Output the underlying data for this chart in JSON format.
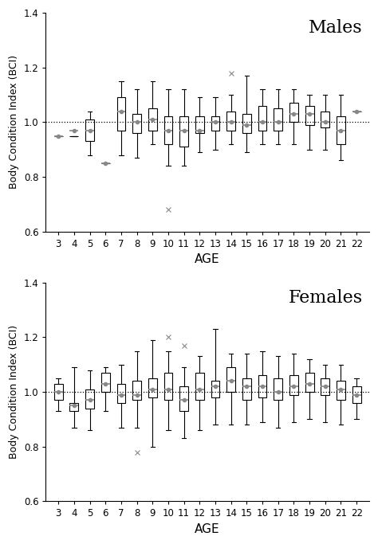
{
  "ages": [
    3,
    4,
    5,
    6,
    7,
    8,
    9,
    10,
    11,
    12,
    13,
    14,
    15,
    16,
    17,
    18,
    19,
    20,
    21,
    22
  ],
  "males": {
    "medians": [
      0.95,
      0.97,
      0.97,
      0.85,
      1.04,
      1.0,
      1.01,
      0.97,
      0.97,
      0.97,
      1.0,
      1.0,
      0.99,
      1.0,
      1.0,
      1.03,
      1.03,
      1.0,
      0.97,
      1.04
    ],
    "q1": [
      0.95,
      0.95,
      0.93,
      0.85,
      0.97,
      0.96,
      0.97,
      0.92,
      0.91,
      0.96,
      0.97,
      0.97,
      0.96,
      0.97,
      0.97,
      1.0,
      0.99,
      0.98,
      0.92,
      1.04
    ],
    "q3": [
      0.95,
      0.95,
      1.01,
      0.85,
      1.09,
      1.03,
      1.05,
      1.02,
      1.02,
      1.02,
      1.02,
      1.04,
      1.03,
      1.06,
      1.05,
      1.07,
      1.06,
      1.04,
      1.02,
      1.04
    ],
    "whislo": [
      0.95,
      0.95,
      0.88,
      0.85,
      0.88,
      0.87,
      0.92,
      0.84,
      0.84,
      0.89,
      0.9,
      0.92,
      0.89,
      0.92,
      0.92,
      0.92,
      0.9,
      0.9,
      0.86,
      1.04
    ],
    "whishi": [
      0.95,
      0.95,
      1.04,
      0.85,
      1.15,
      1.12,
      1.15,
      1.12,
      1.12,
      1.09,
      1.09,
      1.1,
      1.17,
      1.12,
      1.12,
      1.12,
      1.1,
      1.1,
      1.1,
      1.04
    ],
    "fliers": [
      [
        null,
        null
      ],
      [
        null,
        null
      ],
      [
        null,
        null
      ],
      [
        null,
        null
      ],
      [
        null,
        null
      ],
      [
        null,
        null
      ],
      [
        null,
        null
      ],
      [
        11,
        0.68
      ],
      [
        null,
        null
      ],
      [
        null,
        null
      ],
      [
        null,
        null
      ],
      [
        15,
        1.18
      ],
      [
        null,
        null
      ],
      [
        null,
        null
      ],
      [
        null,
        null
      ],
      [
        null,
        null
      ],
      [
        null,
        null
      ],
      [
        null,
        null
      ],
      [
        null,
        null
      ],
      [
        null,
        null
      ]
    ],
    "single_obs": [
      true,
      false,
      false,
      true,
      false,
      false,
      false,
      false,
      false,
      false,
      false,
      false,
      false,
      false,
      false,
      false,
      false,
      false,
      false,
      false
    ]
  },
  "females": {
    "medians": [
      1.0,
      0.95,
      0.97,
      1.03,
      0.99,
      0.99,
      1.01,
      1.01,
      0.97,
      1.01,
      1.02,
      1.04,
      1.02,
      1.02,
      1.0,
      1.02,
      1.03,
      1.02,
      1.01,
      0.99
    ],
    "q1": [
      0.97,
      0.93,
      0.94,
      1.0,
      0.96,
      0.97,
      0.98,
      0.97,
      0.93,
      0.97,
      0.98,
      1.0,
      0.97,
      0.98,
      0.97,
      0.99,
      1.0,
      0.99,
      0.97,
      0.96
    ],
    "q3": [
      1.03,
      0.96,
      1.01,
      1.07,
      1.03,
      1.04,
      1.05,
      1.07,
      1.02,
      1.07,
      1.04,
      1.09,
      1.05,
      1.06,
      1.05,
      1.06,
      1.07,
      1.05,
      1.04,
      1.02
    ],
    "whislo": [
      0.93,
      0.87,
      0.86,
      0.93,
      0.87,
      0.87,
      0.8,
      0.86,
      0.83,
      0.86,
      0.88,
      0.88,
      0.88,
      0.89,
      0.87,
      0.89,
      0.9,
      0.89,
      0.88,
      0.9
    ],
    "whishi": [
      1.05,
      1.09,
      1.08,
      1.09,
      1.1,
      1.15,
      1.19,
      1.15,
      1.09,
      1.13,
      1.23,
      1.14,
      1.14,
      1.15,
      1.13,
      1.14,
      1.12,
      1.1,
      1.1,
      1.05
    ],
    "fliers": [
      [
        null,
        null
      ],
      [
        null,
        null
      ],
      [
        null,
        null
      ],
      [
        null,
        null
      ],
      [
        null,
        null
      ],
      [
        8,
        0.78
      ],
      [
        null,
        null
      ],
      [
        10,
        1.2
      ],
      [
        11,
        1.17
      ],
      [
        null,
        null
      ],
      [
        null,
        null
      ],
      [
        null,
        null
      ],
      [
        null,
        null
      ],
      [
        null,
        null
      ],
      [
        null,
        null
      ],
      [
        null,
        null
      ],
      [
        null,
        null
      ],
      [
        null,
        null
      ],
      [
        null,
        null
      ],
      [
        null,
        null
      ]
    ],
    "single_obs": [
      false,
      false,
      false,
      false,
      false,
      false,
      false,
      false,
      false,
      false,
      false,
      false,
      false,
      false,
      false,
      false,
      false,
      false,
      false,
      false
    ]
  },
  "ylabel": "Body Condition Index (BCI)",
  "xlabel": "AGE",
  "ylim": [
    0.6,
    1.4
  ],
  "yticks": [
    0.6,
    0.8,
    1.0,
    1.2,
    1.4
  ],
  "dotted_line": 1.0,
  "box_facecolor": "white",
  "box_edgecolor": "black",
  "median_color": "#888888",
  "whisker_color": "black",
  "flier_color": "#888888",
  "title_males": "Males",
  "title_females": "Females",
  "title_fontsize": 16,
  "ylabel_fontsize": 9,
  "xlabel_fontsize": 11,
  "tick_fontsize": 8.5
}
